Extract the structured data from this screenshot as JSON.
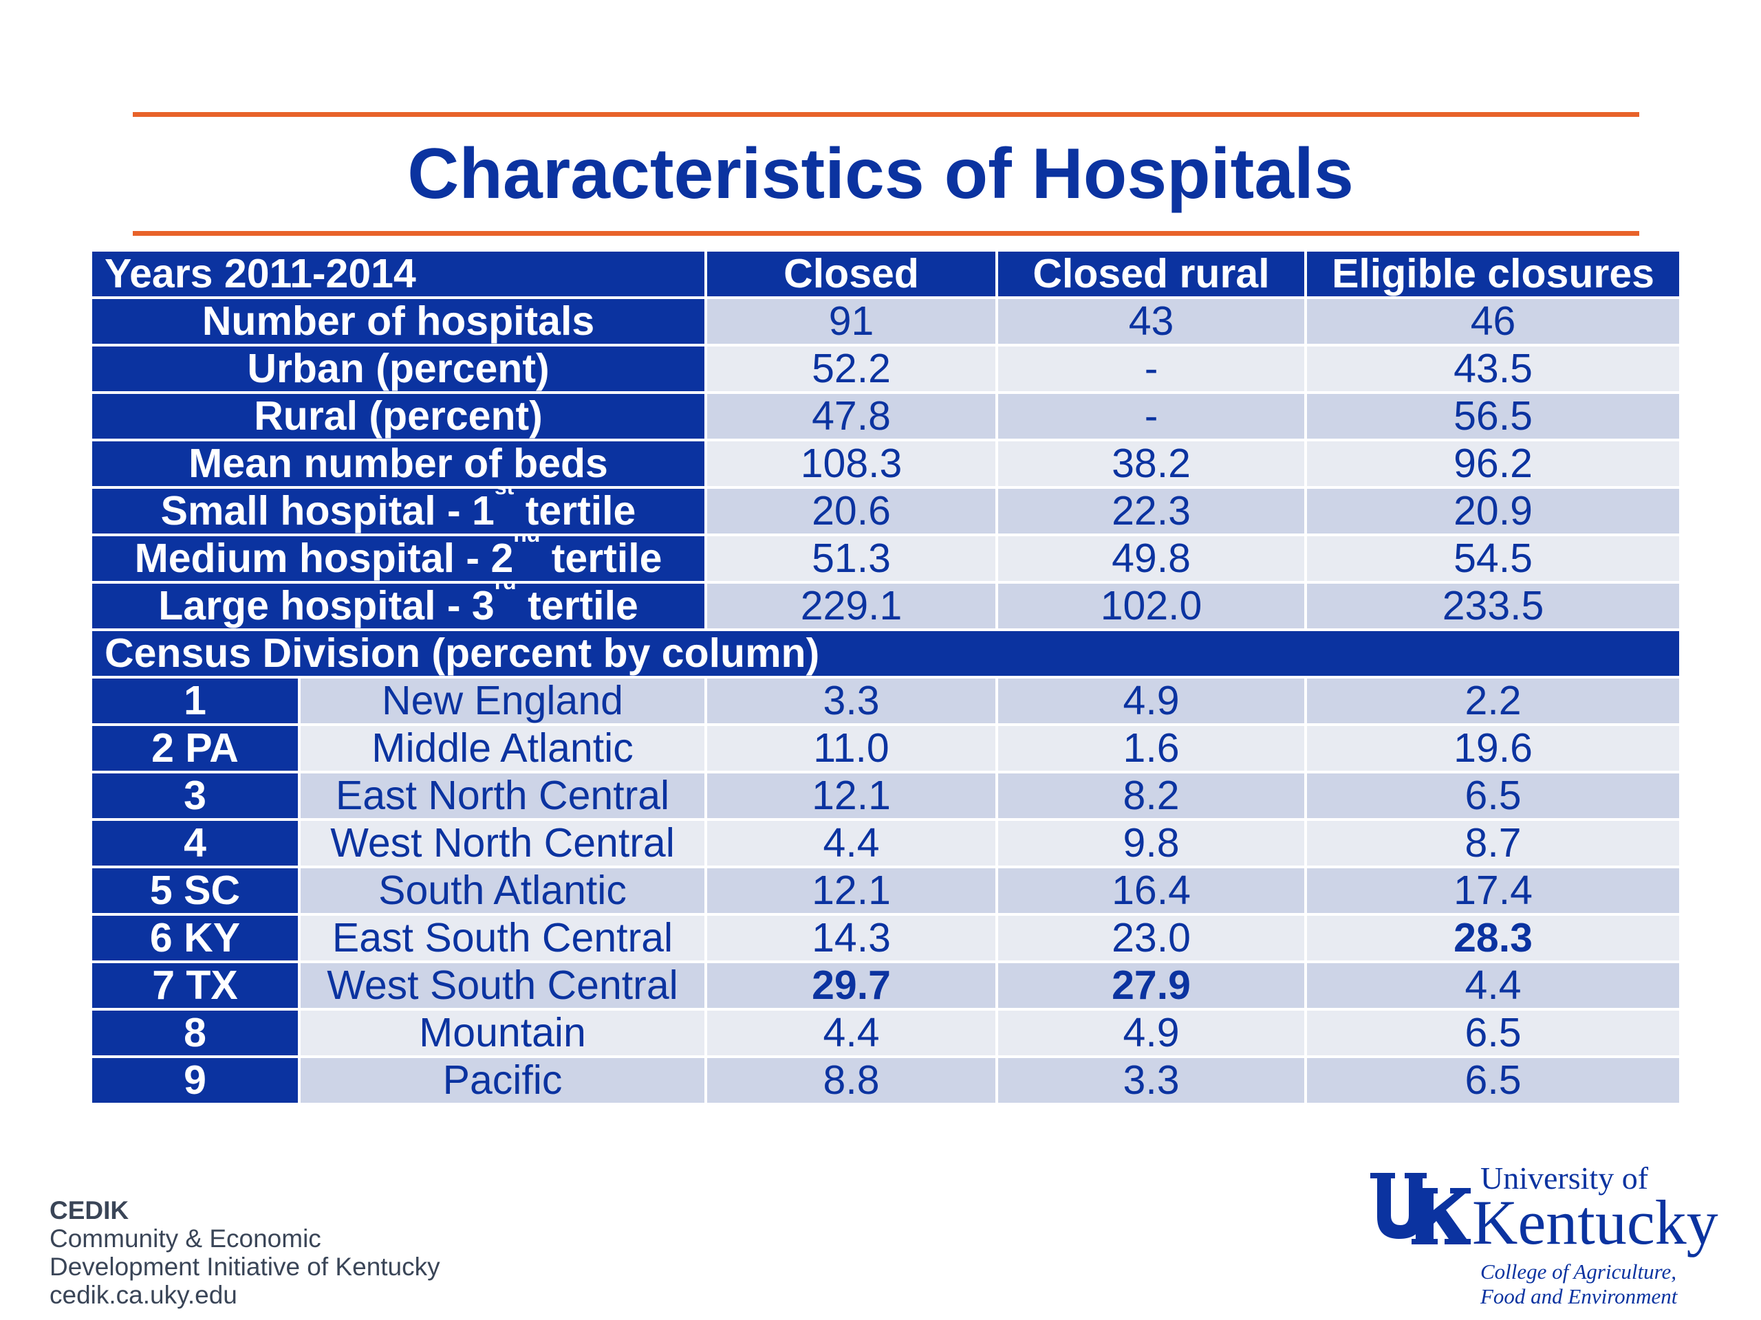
{
  "title": "Characteristics of Hospitals",
  "table": {
    "header": [
      "Years 2011-2014",
      "Closed",
      "Closed rural",
      "Eligible closures"
    ],
    "rows": [
      {
        "label": "Number of hospitals",
        "values": [
          "91",
          "43",
          "46"
        ]
      },
      {
        "label": "Urban (percent)",
        "values": [
          "52.2",
          "-",
          "43.5"
        ]
      },
      {
        "label": "Rural (percent)",
        "values": [
          "47.8",
          "-",
          "56.5"
        ]
      },
      {
        "label": "Mean number of beds",
        "values": [
          "108.3",
          "38.2",
          "96.2"
        ]
      },
      {
        "label_pre": "Small hospital - 1",
        "label_sup": "st",
        "label_post": " tertile",
        "values": [
          "20.6",
          "22.3",
          "20.9"
        ]
      },
      {
        "label_pre": "Medium hospital - 2",
        "label_sup": "nd",
        "label_post": " tertile",
        "values": [
          "51.3",
          "49.8",
          "54.5"
        ]
      },
      {
        "label_pre": "Large hospital - 3",
        "label_sup": "rd",
        "label_post": " tertile",
        "values": [
          "229.1",
          "102.0",
          "233.5"
        ]
      }
    ],
    "section": "Census Division (percent by column)",
    "divisions": [
      {
        "code": "1",
        "name": "New England",
        "values": [
          "3.3",
          "4.9",
          "2.2"
        ]
      },
      {
        "code": "2 PA",
        "name": "Middle Atlantic",
        "values": [
          "11.0",
          "1.6",
          "19.6"
        ]
      },
      {
        "code": "3",
        "name": "East North Central",
        "values": [
          "12.1",
          "8.2",
          "6.5"
        ]
      },
      {
        "code": "4",
        "name": "West North Central",
        "values": [
          "4.4",
          "9.8",
          "8.7"
        ]
      },
      {
        "code": "5 SC",
        "name": "South Atlantic",
        "values": [
          "12.1",
          "16.4",
          "17.4"
        ]
      },
      {
        "code": "6 KY",
        "name": "East South Central",
        "values": [
          "14.3",
          "23.0",
          "28.3"
        ]
      },
      {
        "code": "7 TX",
        "name": "West South Central",
        "values": [
          "29.7",
          "27.9",
          "4.4"
        ]
      },
      {
        "code": "8",
        "name": "Mountain",
        "values": [
          "4.4",
          "4.9",
          "6.5"
        ]
      },
      {
        "code": "9",
        "name": "Pacific",
        "values": [
          "8.8",
          "3.3",
          "6.5"
        ]
      }
    ]
  },
  "footer": {
    "cedik": [
      "CEDIK",
      "Community & Economic",
      "Development Initiative of Kentucky",
      "cedik.ca.uky.edu"
    ],
    "uk_logo": {
      "monogram": "UK",
      "line1": "University of",
      "line2": "Kentucky",
      "line3": "College of Agriculture,",
      "line4": "Food and Environment"
    }
  },
  "colors": {
    "navy": "#0b33a0",
    "orange": "#e8622a",
    "row_a": "#cdd4e7",
    "row_b": "#e8ebf2"
  }
}
